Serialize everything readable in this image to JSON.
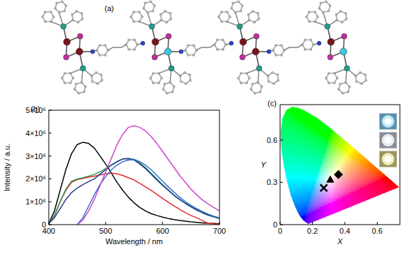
{
  "panel_a": {
    "label": "(a)"
  },
  "chart_data": [
    {
      "type": "line",
      "title": "(b)",
      "x_label": "Wavelength / nm",
      "y_label": "Intensity / a.u.",
      "x": [
        400,
        410,
        420,
        430,
        440,
        450,
        460,
        470,
        480,
        490,
        500,
        510,
        520,
        530,
        540,
        550,
        560,
        570,
        580,
        590,
        600,
        610,
        620,
        630,
        640,
        650,
        660,
        670,
        680,
        690,
        700
      ],
      "xlim": [
        400,
        700
      ],
      "xticks": [
        400,
        500,
        600,
        700
      ],
      "ylim": [
        0,
        5000000
      ],
      "yticks": [
        0,
        {
          "value": 1000000,
          "label": "1×10⁶"
        },
        {
          "value": 2000000,
          "label": "2×10⁶"
        },
        {
          "value": 3000000,
          "label": "3×10⁶"
        },
        {
          "value": 4000000,
          "label": "4×10⁶"
        },
        {
          "value": 5000000,
          "label": "5×10⁶"
        }
      ],
      "grid": false,
      "series": [
        {
          "color": "#000000",
          "values": [
            50000,
            600000,
            1500000,
            2400000,
            3100000,
            3500000,
            3600000,
            3550000,
            3350000,
            3000000,
            2650000,
            2250000,
            1850000,
            1500000,
            1200000,
            950000,
            750000,
            600000,
            480000,
            400000,
            330000,
            270000,
            220000,
            180000,
            150000,
            120000,
            100000,
            80000,
            60000,
            50000,
            40000
          ]
        },
        {
          "color": "#e8262b",
          "values": [
            50000,
            400000,
            1000000,
            1500000,
            1850000,
            1970000,
            2020000,
            2070000,
            2120000,
            2170000,
            2220000,
            2250000,
            2220000,
            2150000,
            2050000,
            1950000,
            1800000,
            1650000,
            1500000,
            1320000,
            1150000,
            980000,
            820000,
            670000,
            520000,
            400000,
            300000,
            180000,
            50000,
            30000,
            20000
          ]
        },
        {
          "color": "#2e9a55",
          "values": [
            50000,
            400000,
            1000000,
            1550000,
            1900000,
            2000000,
            2050000,
            2120000,
            2200000,
            2300000,
            2450000,
            2600000,
            2750000,
            2870000,
            2900000,
            2850000,
            2700000,
            2500000,
            2250000,
            2000000,
            1750000,
            1520000,
            1300000,
            1100000,
            930000,
            780000,
            640000,
            520000,
            420000,
            340000,
            270000
          ]
        },
        {
          "color": "#1f3a8a",
          "values": [
            50000,
            300000,
            700000,
            1100000,
            1400000,
            1600000,
            1750000,
            1880000,
            2000000,
            2200000,
            2400000,
            2600000,
            2750000,
            2870000,
            2880000,
            2820000,
            2650000,
            2450000,
            2200000,
            1950000,
            1720000,
            1500000,
            1280000,
            1100000,
            930000,
            780000,
            640000,
            520000,
            420000,
            340000,
            270000
          ]
        },
        {
          "color": "#2f6fd0",
          "values": [
            null,
            null,
            null,
            null,
            null,
            0,
            300000,
            800000,
            1300000,
            1750000,
            2100000,
            2400000,
            2600000,
            2750000,
            2820000,
            2850000,
            2750000,
            2600000,
            2400000,
            2150000,
            1900000,
            1650000,
            1420000,
            1200000,
            1000000,
            840000,
            700000,
            570000,
            460000,
            370000,
            300000
          ]
        },
        {
          "color": "#cc44cc",
          "values": [
            null,
            null,
            null,
            null,
            null,
            0,
            200000,
            600000,
            1100000,
            1700000,
            2300000,
            2900000,
            3500000,
            3950000,
            4250000,
            4320000,
            4250000,
            4100000,
            3850000,
            3550000,
            3200000,
            2850000,
            2500000,
            2150000,
            1850000,
            1550000,
            1300000,
            1080000,
            900000,
            750000,
            600000
          ]
        }
      ]
    },
    {
      "type": "scatter",
      "title": "(c)",
      "x_label": "X",
      "y_label": "Y",
      "xlim": [
        0,
        0.74
      ],
      "xticks": [
        0,
        0.2,
        0.4,
        0.6
      ],
      "ylim": [
        0,
        0.85
      ],
      "yticks": [
        0,
        0.3,
        0.6
      ],
      "grid": false,
      "locus": {
        "x": [
          0.1741,
          0.144,
          0.1241,
          0.1096,
          0.0913,
          0.0687,
          0.0454,
          0.0235,
          0.0082,
          0.0039,
          0.0139,
          0.0389,
          0.0743,
          0.1142,
          0.1547,
          0.2296,
          0.3016,
          0.3731,
          0.4441,
          0.5125,
          0.5752,
          0.627,
          0.6915,
          0.719,
          0.7347
        ],
        "y": [
          0.005,
          0.0297,
          0.0578,
          0.0868,
          0.1327,
          0.2007,
          0.295,
          0.4127,
          0.5384,
          0.6548,
          0.7502,
          0.812,
          0.8338,
          0.8262,
          0.8059,
          0.7543,
          0.6923,
          0.6245,
          0.5547,
          0.4866,
          0.4242,
          0.3725,
          0.3083,
          0.2809,
          0.2653
        ]
      },
      "series": [
        {
          "color": "#000000",
          "marker": "x",
          "x": [
            0.27
          ],
          "values": [
            0.26
          ]
        },
        {
          "color": "#000000",
          "marker": "triangle",
          "x": [
            0.31
          ],
          "values": [
            0.32
          ]
        },
        {
          "color": "#000000",
          "marker": "diamond",
          "x": [
            0.36
          ],
          "values": [
            0.355
          ]
        }
      ]
    }
  ]
}
